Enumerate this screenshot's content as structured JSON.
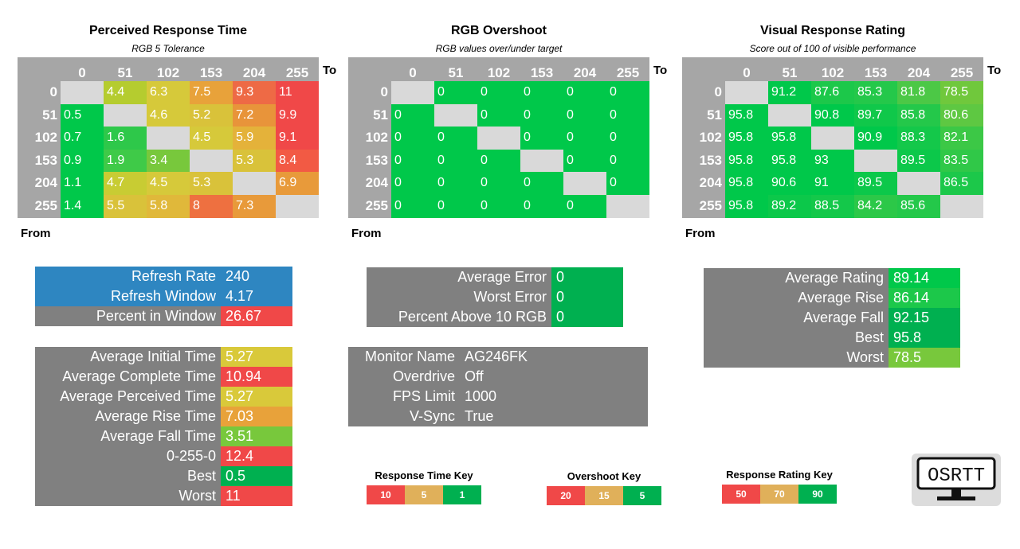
{
  "colors": {
    "header_gray": "#a6a6a6",
    "diag_gray": "#d9d9d9",
    "green": "#00b050",
    "green2": "#00c84a",
    "lightgreen": "#70c83c",
    "yellowgreen": "#b5cc2f",
    "yellow": "#d6c93a",
    "orange": "#e8a23a",
    "darkorange": "#e57f3b",
    "red": "#f04848",
    "blue": "#2e86c1",
    "dark_gray": "#808080",
    "key_orange": "#e0b05a"
  },
  "heatmaps": [
    {
      "id": "perceived",
      "title": "Perceived Response Time",
      "subtitle": "RGB 5 Tolerance",
      "to_label": "To",
      "from_label": "From",
      "cols": [
        "0",
        "51",
        "102",
        "153",
        "204",
        "255"
      ],
      "rows": [
        "0",
        "51",
        "102",
        "153",
        "204",
        "255"
      ],
      "values": [
        [
          "",
          "4.4",
          "6.3",
          "7.5",
          "9.3",
          "11"
        ],
        [
          "0.5",
          "",
          "4.6",
          "5.2",
          "7.2",
          "9.9"
        ],
        [
          "0.7",
          "1.6",
          "",
          "4.5",
          "5.9",
          "9.1"
        ],
        [
          "0.9",
          "1.9",
          "3.4",
          "",
          "5.3",
          "8.4"
        ],
        [
          "1.1",
          "4.7",
          "4.5",
          "5.3",
          "",
          "6.9"
        ],
        [
          "1.4",
          "5.5",
          "5.8",
          "8",
          "7.3",
          ""
        ]
      ],
      "cell_colors": [
        [
          "#d9d9d9",
          "#b5cc2f",
          "#d6c93a",
          "#e8a23a",
          "#ee6a45",
          "#f04848"
        ],
        [
          "#00c84a",
          "#d9d9d9",
          "#d6c93a",
          "#d9c23a",
          "#e8943a",
          "#f04848"
        ],
        [
          "#00c84a",
          "#2ec84a",
          "#d9d9d9",
          "#d6c93a",
          "#e4b23a",
          "#f04848"
        ],
        [
          "#00c84a",
          "#3fca48",
          "#78c83c",
          "#d9d9d9",
          "#d9c23a",
          "#f25a44"
        ],
        [
          "#00c84a",
          "#c8cc33",
          "#d6c93a",
          "#d9c23a",
          "#d9d9d9",
          "#e89a3a"
        ],
        [
          "#00c84a",
          "#d9c23a",
          "#e0b83a",
          "#ee7040",
          "#e89a3a",
          "#d9d9d9"
        ]
      ]
    },
    {
      "id": "overshoot",
      "title": "RGB Overshoot",
      "subtitle": "RGB values over/under target",
      "to_label": "To",
      "from_label": "From",
      "cols": [
        "0",
        "51",
        "102",
        "153",
        "204",
        "255"
      ],
      "rows": [
        "0",
        "51",
        "102",
        "153",
        "204",
        "255"
      ],
      "values": [
        [
          "",
          "0",
          "0",
          "0",
          "0",
          "0"
        ],
        [
          "0",
          "",
          "0",
          "0",
          "0",
          "0"
        ],
        [
          "0",
          "0",
          "",
          "0",
          "0",
          "0"
        ],
        [
          "0",
          "0",
          "0",
          "",
          "0",
          "0"
        ],
        [
          "0",
          "0",
          "0",
          "0",
          "",
          "0"
        ],
        [
          "0",
          "0",
          "0",
          "0",
          "0",
          ""
        ]
      ],
      "cell_colors": [
        [
          "#d9d9d9",
          "#00c84a",
          "#00c84a",
          "#00c84a",
          "#00c84a",
          "#00c84a"
        ],
        [
          "#00c84a",
          "#d9d9d9",
          "#00c84a",
          "#00c84a",
          "#00c84a",
          "#00c84a"
        ],
        [
          "#00c84a",
          "#00c84a",
          "#d9d9d9",
          "#00c84a",
          "#00c84a",
          "#00c84a"
        ],
        [
          "#00c84a",
          "#00c84a",
          "#00c84a",
          "#d9d9d9",
          "#00c84a",
          "#00c84a"
        ],
        [
          "#00c84a",
          "#00c84a",
          "#00c84a",
          "#00c84a",
          "#d9d9d9",
          "#00c84a"
        ],
        [
          "#00c84a",
          "#00c84a",
          "#00c84a",
          "#00c84a",
          "#00c84a",
          "#d9d9d9"
        ]
      ]
    },
    {
      "id": "rating",
      "title": "Visual Response Rating",
      "subtitle": "Score out of 100 of visible performance",
      "to_label": "To",
      "from_label": "From",
      "cols": [
        "0",
        "51",
        "102",
        "153",
        "204",
        "255"
      ],
      "rows": [
        "0",
        "51",
        "102",
        "153",
        "204",
        "255"
      ],
      "values": [
        [
          "",
          "91.2",
          "87.6",
          "85.3",
          "81.8",
          "78.5"
        ],
        [
          "95.8",
          "",
          "90.8",
          "89.7",
          "85.8",
          "80.6"
        ],
        [
          "95.8",
          "95.8",
          "",
          "90.9",
          "88.3",
          "82.1"
        ],
        [
          "95.8",
          "95.8",
          "93",
          "",
          "89.5",
          "83.5"
        ],
        [
          "95.8",
          "90.6",
          "91",
          "89.5",
          "",
          "86.5"
        ],
        [
          "95.8",
          "89.2",
          "88.5",
          "84.2",
          "85.6",
          ""
        ]
      ],
      "cell_colors": [
        [
          "#d9d9d9",
          "#00c84a",
          "#1cc84a",
          "#24c84a",
          "#4cc846",
          "#70c83c"
        ],
        [
          "#00c84a",
          "#d9d9d9",
          "#00c84a",
          "#10c84a",
          "#24c84a",
          "#5ec842"
        ],
        [
          "#00c84a",
          "#00c84a",
          "#d9d9d9",
          "#00c84a",
          "#14c84a",
          "#3cc846"
        ],
        [
          "#00c84a",
          "#00c84a",
          "#00c84a",
          "#d9d9d9",
          "#0cc84a",
          "#30c848"
        ],
        [
          "#00c84a",
          "#00c84a",
          "#00c84a",
          "#0cc84a",
          "#d9d9d9",
          "#1cc84a"
        ],
        [
          "#00c84a",
          "#0cc84a",
          "#14c84a",
          "#2cc848",
          "#24c84a",
          "#d9d9d9"
        ]
      ]
    }
  ],
  "refresh_panel": [
    {
      "label": "Refresh Rate",
      "value": "240",
      "label_bg": "#2e86c1",
      "value_bg": "#2e86c1"
    },
    {
      "label": "Refresh Window",
      "value": "4.17",
      "label_bg": "#2e86c1",
      "value_bg": "#2e86c1"
    },
    {
      "label": "Percent in Window",
      "value": "26.67",
      "label_bg": "#808080",
      "value_bg": "#f04848"
    }
  ],
  "times_panel": [
    {
      "label": "Average Initial Time",
      "value": "5.27",
      "value_bg": "#d9c93a"
    },
    {
      "label": "Average Complete Time",
      "value": "10.94",
      "value_bg": "#f04848"
    },
    {
      "label": "Average Perceived Time",
      "value": "5.27",
      "value_bg": "#d9c93a"
    },
    {
      "label": "Average Rise Time",
      "value": "7.03",
      "value_bg": "#e8a23a"
    },
    {
      "label": "Average Fall Time",
      "value": "3.51",
      "value_bg": "#78c83c"
    },
    {
      "label": "0-255-0",
      "value": "12.4",
      "value_bg": "#f04848"
    },
    {
      "label": "Best",
      "value": "0.5",
      "value_bg": "#00b050"
    },
    {
      "label": "Worst",
      "value": "11",
      "value_bg": "#f04848"
    }
  ],
  "error_panel": [
    {
      "label": "Average Error",
      "value": "0",
      "value_bg": "#00b050"
    },
    {
      "label": "Worst Error",
      "value": "0",
      "value_bg": "#00b050"
    },
    {
      "label": "Percent Above 10 RGB",
      "value": "0",
      "value_bg": "#00b050"
    }
  ],
  "monitor_panel": [
    {
      "label": "Monitor Name",
      "value": "AG246FK"
    },
    {
      "label": "Overdrive",
      "value": "Off"
    },
    {
      "label": "FPS Limit",
      "value": "1000"
    },
    {
      "label": "V-Sync",
      "value": "True"
    }
  ],
  "rating_panel": [
    {
      "label": "Average Rating",
      "value": "89.14",
      "value_bg": "#00c84a"
    },
    {
      "label": "Average Rise",
      "value": "86.14",
      "value_bg": "#1cc84a"
    },
    {
      "label": "Average Fall",
      "value": "92.15",
      "value_bg": "#00b050"
    },
    {
      "label": "Best",
      "value": "95.8",
      "value_bg": "#00b050"
    },
    {
      "label": "Worst",
      "value": "78.5",
      "value_bg": "#78c83c"
    }
  ],
  "keys": [
    {
      "title": "Response Time Key",
      "cells": [
        {
          "text": "10",
          "bg": "#f04848"
        },
        {
          "text": "5",
          "bg": "#e0b05a"
        },
        {
          "text": "1",
          "bg": "#00b050"
        }
      ]
    },
    {
      "title": "Overshoot Key",
      "cells": [
        {
          "text": "20",
          "bg": "#f04848"
        },
        {
          "text": "15",
          "bg": "#e0b05a"
        },
        {
          "text": "5",
          "bg": "#00b050"
        }
      ]
    },
    {
      "title": "Response Rating Key",
      "cells": [
        {
          "text": "50",
          "bg": "#f04848"
        },
        {
          "text": "70",
          "bg": "#e0b05a"
        },
        {
          "text": "90",
          "bg": "#00b050"
        }
      ]
    }
  ],
  "logo": {
    "text": "OSRTT",
    "icon": "monitor-icon"
  }
}
